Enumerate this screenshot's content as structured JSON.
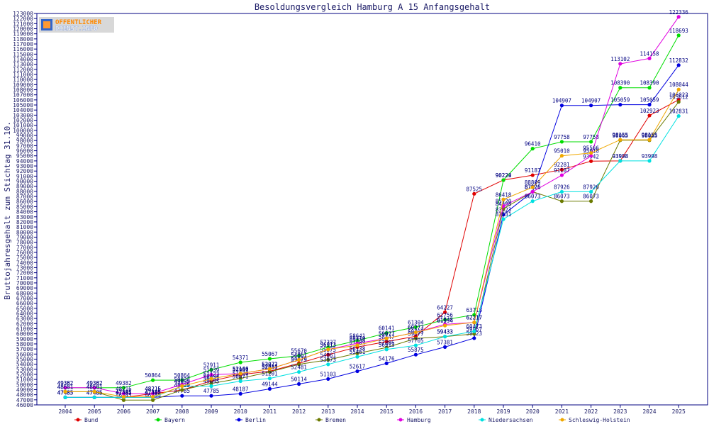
{
  "logo": {
    "line1": "OFFENTLICHER",
    "line2": "DIENST.INFO"
  },
  "chart_data": {
    "type": "line",
    "title": "Besoldungsvergleich Hamburg A 15 Anfangsgehalt",
    "ylabel": "Bruttojahresgehalt zum Stichtag 31.10.",
    "xlabel": "",
    "ylim": [
      46000,
      123000
    ],
    "ytick_step": 1000,
    "grid": false,
    "legend_position": "bottom",
    "x": [
      "2004",
      "2005",
      "2006",
      "2007",
      "2008",
      "2009",
      "2010",
      "2011",
      "2012",
      "2013",
      "2014",
      "2015",
      "2016",
      "2017",
      "2018",
      "2019",
      "2020",
      "2021",
      "2022",
      "2023",
      "2024",
      "2025"
    ],
    "series": [
      {
        "name": "Bund",
        "color": "#e00000",
        "values": [
          47485,
          47485,
          47485,
          48215,
          48925,
          50694,
          51961,
          52613,
          54176,
          55875,
          57381,
          58447,
          59493,
          64227,
          87525,
          90229,
          91187,
          92281,
          93942,
          93998,
          102923,
          106022
        ]
      },
      {
        "name": "Bayern",
        "color": "#00dd00",
        "values": [
          49362,
          49362,
          49382,
          50864,
          50864,
          52911,
          54371,
          55067,
          55670,
          57337,
          58641,
          60141,
          61304,
          62756,
          63718,
          90224,
          96410,
          97758,
          97758,
          108390,
          108390,
          118693
        ]
      },
      {
        "name": "Berlin",
        "color": "#0000e0",
        "values": [
          47485,
          47485,
          47485,
          47485,
          47785,
          47785,
          48187,
          49144,
          50114,
          51103,
          52617,
          54176,
          55875,
          57381,
          59123,
          83423,
          87926,
          104907,
          104907,
          105059,
          105059,
          112832
        ]
      },
      {
        "name": "Bremen",
        "color": "#6b7a00",
        "values": [
          48601,
          48601,
          46945,
          46945,
          48939,
          50233,
          51220,
          52481,
          53973,
          54861,
          56138,
          57286,
          59077,
          59433,
          59957,
          84598,
          87926,
          86073,
          86073,
          98065,
          98065,
          105612
        ]
      },
      {
        "name": "Hamburg",
        "color": "#e000e0",
        "values": [
          49382,
          49382,
          48216,
          48216,
          50033,
          51939,
          52146,
          53072,
          54861,
          56913,
          58110,
          59077,
          60273,
          61848,
          62217,
          85120,
          87926,
          91187,
          95010,
          113102,
          114158,
          122336
        ]
      },
      {
        "name": "Niedersachsen",
        "color": "#00e0e0",
        "values": [
          47485,
          47485,
          47485,
          47485,
          49695,
          49695,
          50671,
          51201,
          52481,
          53973,
          55461,
          56913,
          57705,
          59433,
          60473,
          82531,
          86073,
          87926,
          87926,
          93998,
          93998,
          102831
        ]
      },
      {
        "name": "Schleswig-Holstein",
        "color": "#f0a800",
        "values": [
          48601,
          48601,
          47585,
          47585,
          49695,
          51123,
          52160,
          53072,
          54861,
          56913,
          57738,
          59077,
          60273,
          61594,
          62217,
          86418,
          88809,
          95010,
          95566,
          98155,
          98155,
          108044
        ]
      }
    ]
  }
}
